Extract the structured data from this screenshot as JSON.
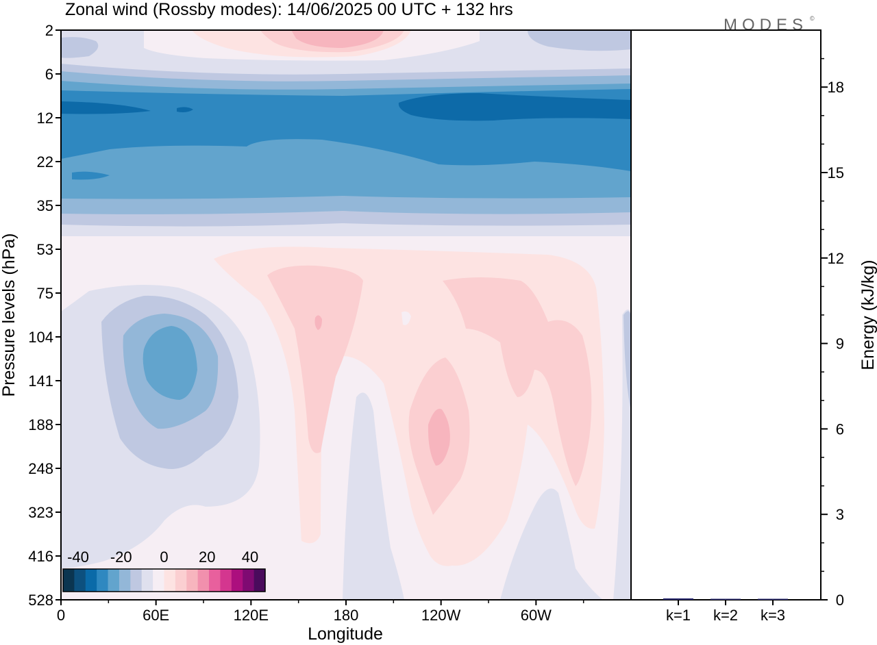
{
  "title": "Zonal wind (Rossby modes):  14/06/2025  00 UTC  + 132 hrs",
  "logo": "MODES",
  "logo_mark": "©",
  "chart_data": [
    {
      "type": "heatmap",
      "ylabel": "Pressure levels (hPa)",
      "xlabel": "Longitude",
      "yticks": [
        "2",
        "6",
        "12",
        "22",
        "35",
        "53",
        "75",
        "104",
        "141",
        "188",
        "248",
        "323",
        "416",
        "528"
      ],
      "xticks": [
        "0",
        "60E",
        "120E",
        "180",
        "120W",
        "60W"
      ],
      "colorbar_labels": [
        "-40",
        "-20",
        "0",
        "20",
        "40"
      ],
      "colorbar_colors": [
        "#0b3550",
        "#0d507e",
        "#0a6aa8",
        "#2f88c0",
        "#62a4cd",
        "#93b7d8",
        "#bfc8e1",
        "#dfe0ee",
        "#f6eef4",
        "#fde3e2",
        "#fbcfd1",
        "#f7b5be",
        "#f190ad",
        "#e8609d",
        "#d4368f",
        "#ac0f7e",
        "#7f0a72",
        "#4a0b5c"
      ],
      "contour_bands": [
        {
          "level": "very_strong_easterly",
          "color": "#0d6aa8"
        },
        {
          "level": "strong_easterly",
          "color": "#2f88c0"
        },
        {
          "level": "moderate_easterly",
          "color": "#62a4cd"
        },
        {
          "level": "weak_easterly",
          "color": "#93b7d8"
        },
        {
          "level": "light_easterly",
          "color": "#bfc8e1"
        },
        {
          "level": "near_zero_negative",
          "color": "#dfe0ee"
        },
        {
          "level": "near_zero",
          "color": "#f6eef4"
        },
        {
          "level": "light_westerly",
          "color": "#fde3e2"
        },
        {
          "level": "weak_westerly",
          "color": "#fbcfd1"
        },
        {
          "level": "moderate_westerly",
          "color": "#f7b5be"
        }
      ]
    },
    {
      "type": "bar",
      "ylabel": "Energy (kJ/kg)",
      "categories": [
        "k=1",
        "k=2",
        "k=3"
      ],
      "values": [
        0.05,
        0.03,
        0.01
      ],
      "yticks": [
        "0",
        "3",
        "6",
        "9",
        "12",
        "15",
        "18"
      ],
      "ylim": [
        0,
        20
      ],
      "bar_color": "#2a2a6e"
    }
  ]
}
